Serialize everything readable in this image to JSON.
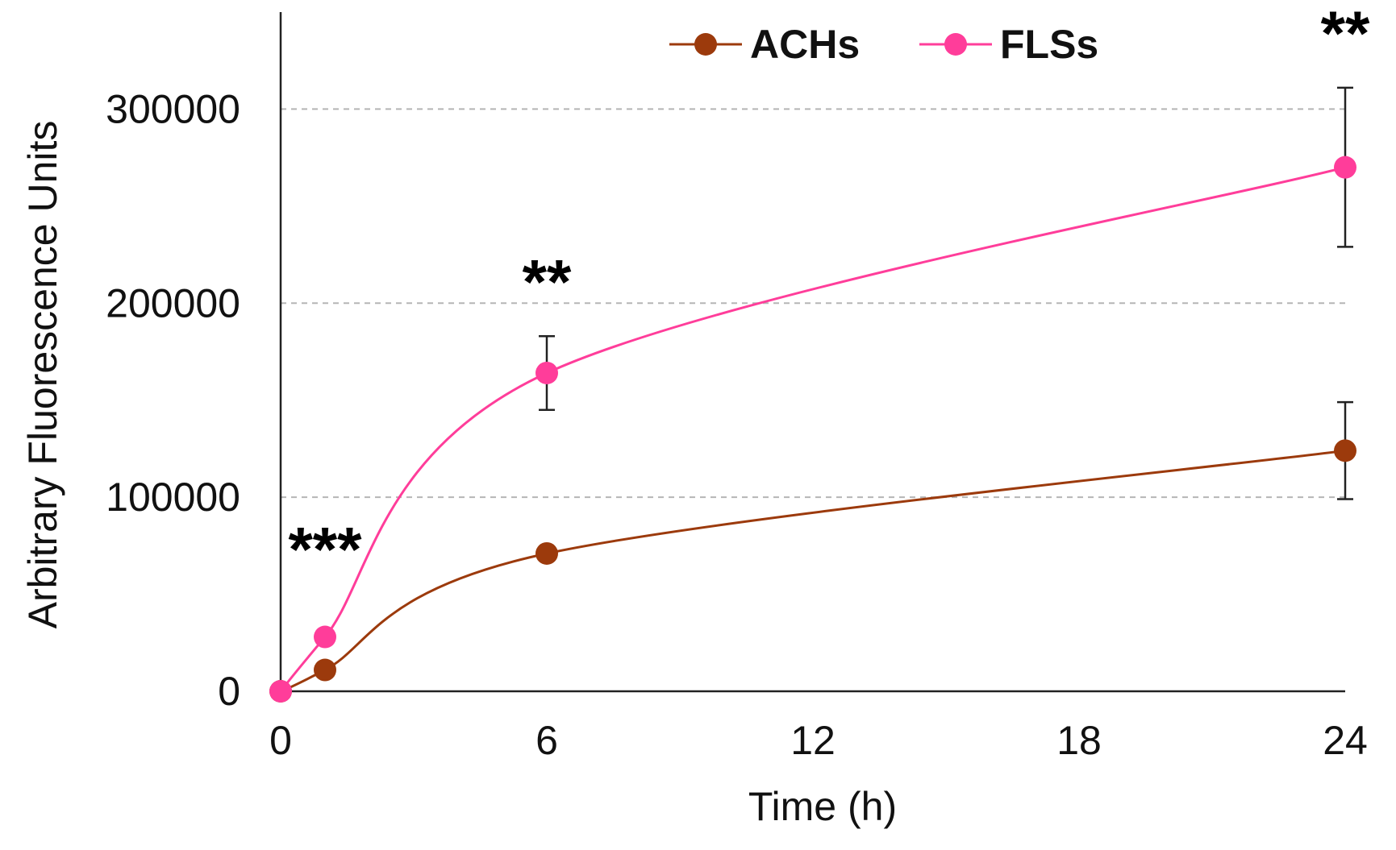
{
  "chart_data": {
    "type": "line",
    "title": "",
    "xlabel": "Time (h)",
    "ylabel": "Arbitrary Fluorescence Units",
    "xlim": [
      0,
      24
    ],
    "ylim": [
      0,
      350000
    ],
    "x_ticks": [
      0,
      6,
      12,
      18,
      24
    ],
    "x_tick_labels": [
      "0",
      "6",
      "12",
      "18",
      "24"
    ],
    "y_ticks": [
      0,
      100000,
      200000,
      300000
    ],
    "y_tick_labels": [
      "0",
      "100000",
      "200000",
      "300000"
    ],
    "grid": "horizontal-dashed",
    "legend_position": "top-center",
    "series": [
      {
        "name": "ACHs",
        "color": "#9c3a0c",
        "x": [
          0,
          1,
          6,
          24
        ],
        "y": [
          0,
          11000,
          71000,
          124000
        ],
        "error": [
          0,
          0,
          2000,
          25000
        ]
      },
      {
        "name": "FLSs",
        "color": "#ff3d9a",
        "x": [
          0,
          1,
          6,
          24
        ],
        "y": [
          0,
          28000,
          164000,
          270000
        ],
        "error": [
          0,
          0,
          19000,
          41000
        ]
      }
    ],
    "annotations": [
      {
        "text": "***",
        "x": 1,
        "y": 62000
      },
      {
        "text": "**",
        "x": 6,
        "y": 200000
      },
      {
        "text": "**",
        "x": 24,
        "y": 328000
      }
    ]
  }
}
